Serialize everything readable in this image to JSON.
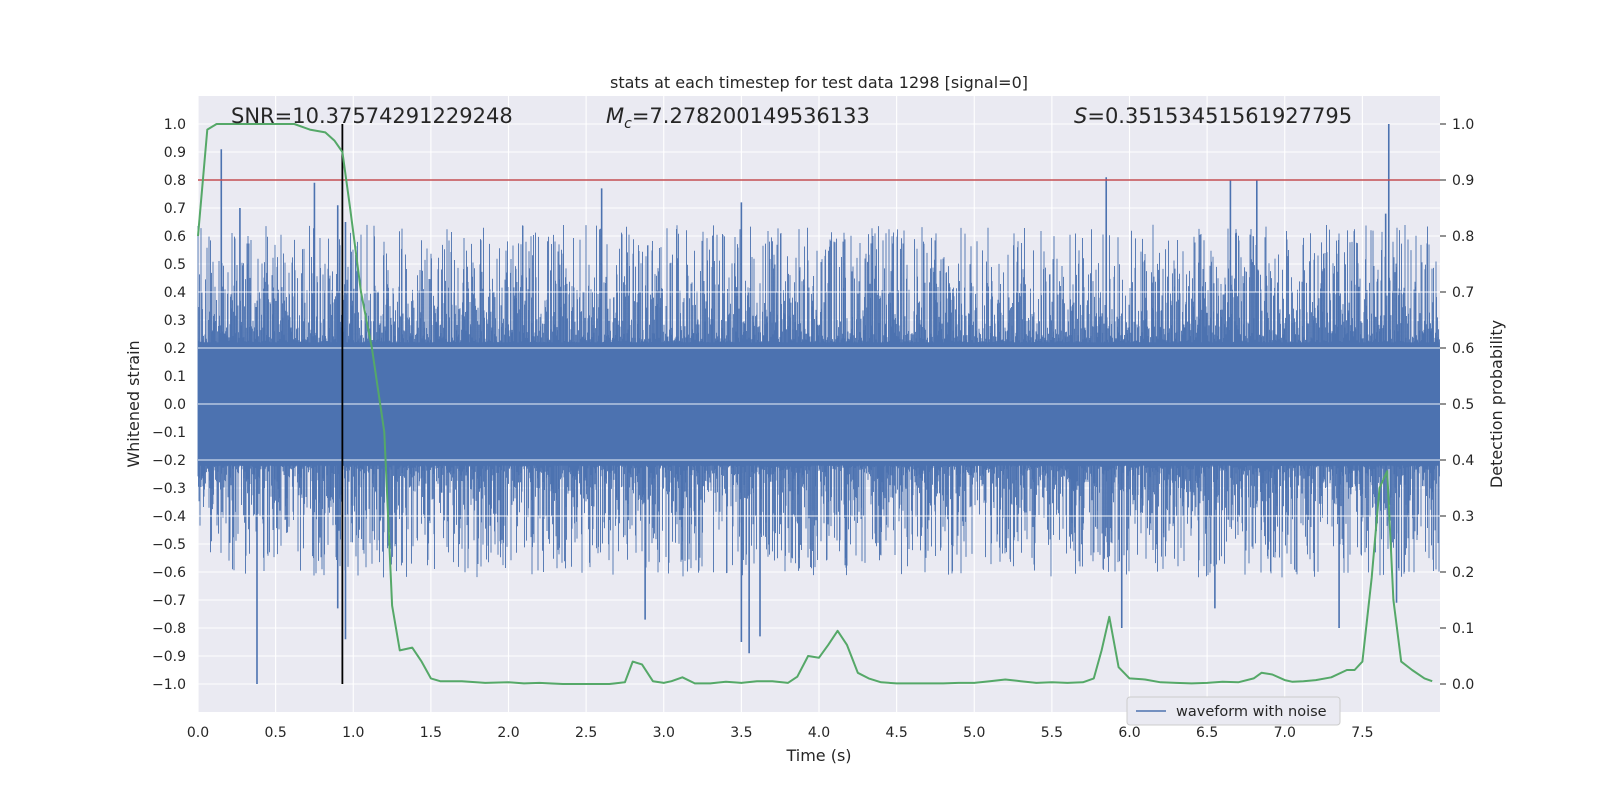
{
  "chart_data": {
    "type": "line",
    "title": "stats at each timestep for test data 1298 [signal=0]",
    "xlabel": "Time (s)",
    "ylabel_left": "Whitened strain",
    "ylabel_right": "Detection probability",
    "xlim": [
      0,
      8
    ],
    "ylim_left": [
      -1.1,
      1.1
    ],
    "ylim_right": [
      -0.05,
      1.05
    ],
    "x_ticks": [
      0.0,
      0.5,
      1.0,
      1.5,
      2.0,
      2.5,
      3.0,
      3.5,
      4.0,
      4.5,
      5.0,
      5.5,
      6.0,
      6.5,
      7.0,
      7.5
    ],
    "x_tick_labels": [
      "0.0",
      "0.5",
      "1.0",
      "1.5",
      "2.0",
      "2.5",
      "3.0",
      "3.5",
      "4.0",
      "4.5",
      "5.0",
      "5.5",
      "6.0",
      "6.5",
      "7.0",
      "7.5"
    ],
    "y_left_ticks": [
      1.0,
      0.9,
      0.8,
      0.7,
      0.6,
      0.5,
      0.4,
      0.3,
      0.2,
      0.1,
      0.0,
      -0.1,
      -0.2,
      -0.3,
      -0.4,
      -0.5,
      -0.6,
      -0.7,
      -0.8,
      -0.9,
      -1.0
    ],
    "y_left_tick_labels": [
      "1.0",
      "0.9",
      "0.8",
      "0.7",
      "0.6",
      "0.5",
      "0.4",
      "0.3",
      "0.2",
      "0.1",
      "0.0",
      "−0.1",
      "−0.2",
      "−0.3",
      "−0.4",
      "−0.5",
      "−0.6",
      "−0.7",
      "−0.8",
      "−0.9",
      "−1.0"
    ],
    "y_right_ticks": [
      1.0,
      0.9,
      0.8,
      0.7,
      0.6,
      0.5,
      0.4,
      0.3,
      0.2,
      0.1,
      0.0
    ],
    "y_right_tick_labels": [
      "1.0",
      "0.9",
      "0.8",
      "0.7",
      "0.6",
      "0.5",
      "0.4",
      "0.3",
      "0.2",
      "0.1",
      "0.0"
    ],
    "grid": true,
    "legend": {
      "entries": [
        "waveform with noise"
      ],
      "location": "lower-right"
    },
    "annotations": {
      "snr": "SNR=10.37574291229248",
      "mc_symbol": "M",
      "mc_sub": "c",
      "mc_value": "=7.278200149536133",
      "s_symbol": "S",
      "s_value": "=0.35153451561927795"
    },
    "threshold_line": {
      "axis": "right",
      "y": 0.9
    },
    "marker_line": {
      "x": 0.93,
      "ymin": -1.0,
      "ymax": 1.0
    },
    "waveform": {
      "name": "waveform with noise",
      "sample_duration_s": 8.0,
      "upper_extremes": [
        {
          "x": 0.15,
          "y": 0.91
        },
        {
          "x": 0.27,
          "y": 0.7
        },
        {
          "x": 0.75,
          "y": 0.79
        },
        {
          "x": 0.9,
          "y": 0.71
        },
        {
          "x": 0.95,
          "y": 0.65
        },
        {
          "x": 2.6,
          "y": 0.77
        },
        {
          "x": 3.5,
          "y": 0.72
        },
        {
          "x": 5.85,
          "y": 0.81
        },
        {
          "x": 6.65,
          "y": 0.8
        },
        {
          "x": 6.82,
          "y": 0.8
        },
        {
          "x": 7.67,
          "y": 1.0
        },
        {
          "x": 7.65,
          "y": 0.68
        }
      ],
      "lower_extremes": [
        {
          "x": 0.38,
          "y": -1.0
        },
        {
          "x": 0.9,
          "y": -0.73
        },
        {
          "x": 0.95,
          "y": -0.84
        },
        {
          "x": 2.88,
          "y": -0.77
        },
        {
          "x": 3.5,
          "y": -0.85
        },
        {
          "x": 3.55,
          "y": -0.89
        },
        {
          "x": 3.62,
          "y": -0.83
        },
        {
          "x": 5.95,
          "y": -0.8
        },
        {
          "x": 6.55,
          "y": -0.73
        },
        {
          "x": 7.35,
          "y": -0.8
        },
        {
          "x": 7.72,
          "y": -0.71
        }
      ]
    },
    "probability": {
      "name": "Detection probability",
      "x": [
        0.0,
        0.06,
        0.12,
        0.2,
        0.3,
        0.4,
        0.5,
        0.62,
        0.72,
        0.82,
        0.88,
        0.93,
        0.98,
        1.05,
        1.12,
        1.2,
        1.25,
        1.3,
        1.38,
        1.44,
        1.5,
        1.56,
        1.7,
        1.85,
        2.0,
        2.1,
        2.2,
        2.35,
        2.5,
        2.65,
        2.75,
        2.8,
        2.86,
        2.93,
        3.0,
        3.05,
        3.12,
        3.2,
        3.3,
        3.4,
        3.5,
        3.6,
        3.7,
        3.8,
        3.86,
        3.93,
        4.0,
        4.06,
        4.12,
        4.18,
        4.25,
        4.32,
        4.4,
        4.5,
        4.6,
        4.7,
        4.8,
        4.9,
        5.0,
        5.1,
        5.2,
        5.3,
        5.4,
        5.5,
        5.6,
        5.7,
        5.77,
        5.82,
        5.87,
        5.93,
        6.0,
        6.1,
        6.2,
        6.3,
        6.4,
        6.5,
        6.6,
        6.7,
        6.8,
        6.85,
        6.92,
        7.0,
        7.05,
        7.12,
        7.2,
        7.3,
        7.4,
        7.45,
        7.5,
        7.56,
        7.61,
        7.66,
        7.7,
        7.75,
        7.82,
        7.9,
        7.95
      ],
      "y": [
        0.8,
        0.99,
        1.0,
        1.0,
        1.0,
        1.0,
        1.0,
        1.0,
        0.99,
        0.985,
        0.97,
        0.95,
        0.85,
        0.7,
        0.6,
        0.45,
        0.14,
        0.06,
        0.065,
        0.04,
        0.01,
        0.005,
        0.005,
        0.002,
        0.003,
        0.001,
        0.002,
        0.0,
        0.0,
        0.0,
        0.003,
        0.04,
        0.035,
        0.005,
        0.002,
        0.005,
        0.012,
        0.001,
        0.001,
        0.004,
        0.002,
        0.005,
        0.005,
        0.002,
        0.013,
        0.05,
        0.047,
        0.07,
        0.095,
        0.07,
        0.02,
        0.01,
        0.003,
        0.001,
        0.001,
        0.001,
        0.001,
        0.002,
        0.002,
        0.005,
        0.008,
        0.005,
        0.002,
        0.003,
        0.002,
        0.003,
        0.01,
        0.06,
        0.12,
        0.03,
        0.01,
        0.008,
        0.003,
        0.002,
        0.001,
        0.002,
        0.004,
        0.003,
        0.01,
        0.02,
        0.017,
        0.007,
        0.004,
        0.005,
        0.007,
        0.012,
        0.025,
        0.025,
        0.04,
        0.19,
        0.35,
        0.38,
        0.15,
        0.04,
        0.025,
        0.01,
        0.005
      ]
    },
    "colors": {
      "waveform": "#4c72b0",
      "probability": "#55a868",
      "threshold": "#c44e52",
      "marker": "#000000",
      "plot_background": "#eaeaf2",
      "grid": "#ffffff",
      "text": "#262626"
    }
  }
}
